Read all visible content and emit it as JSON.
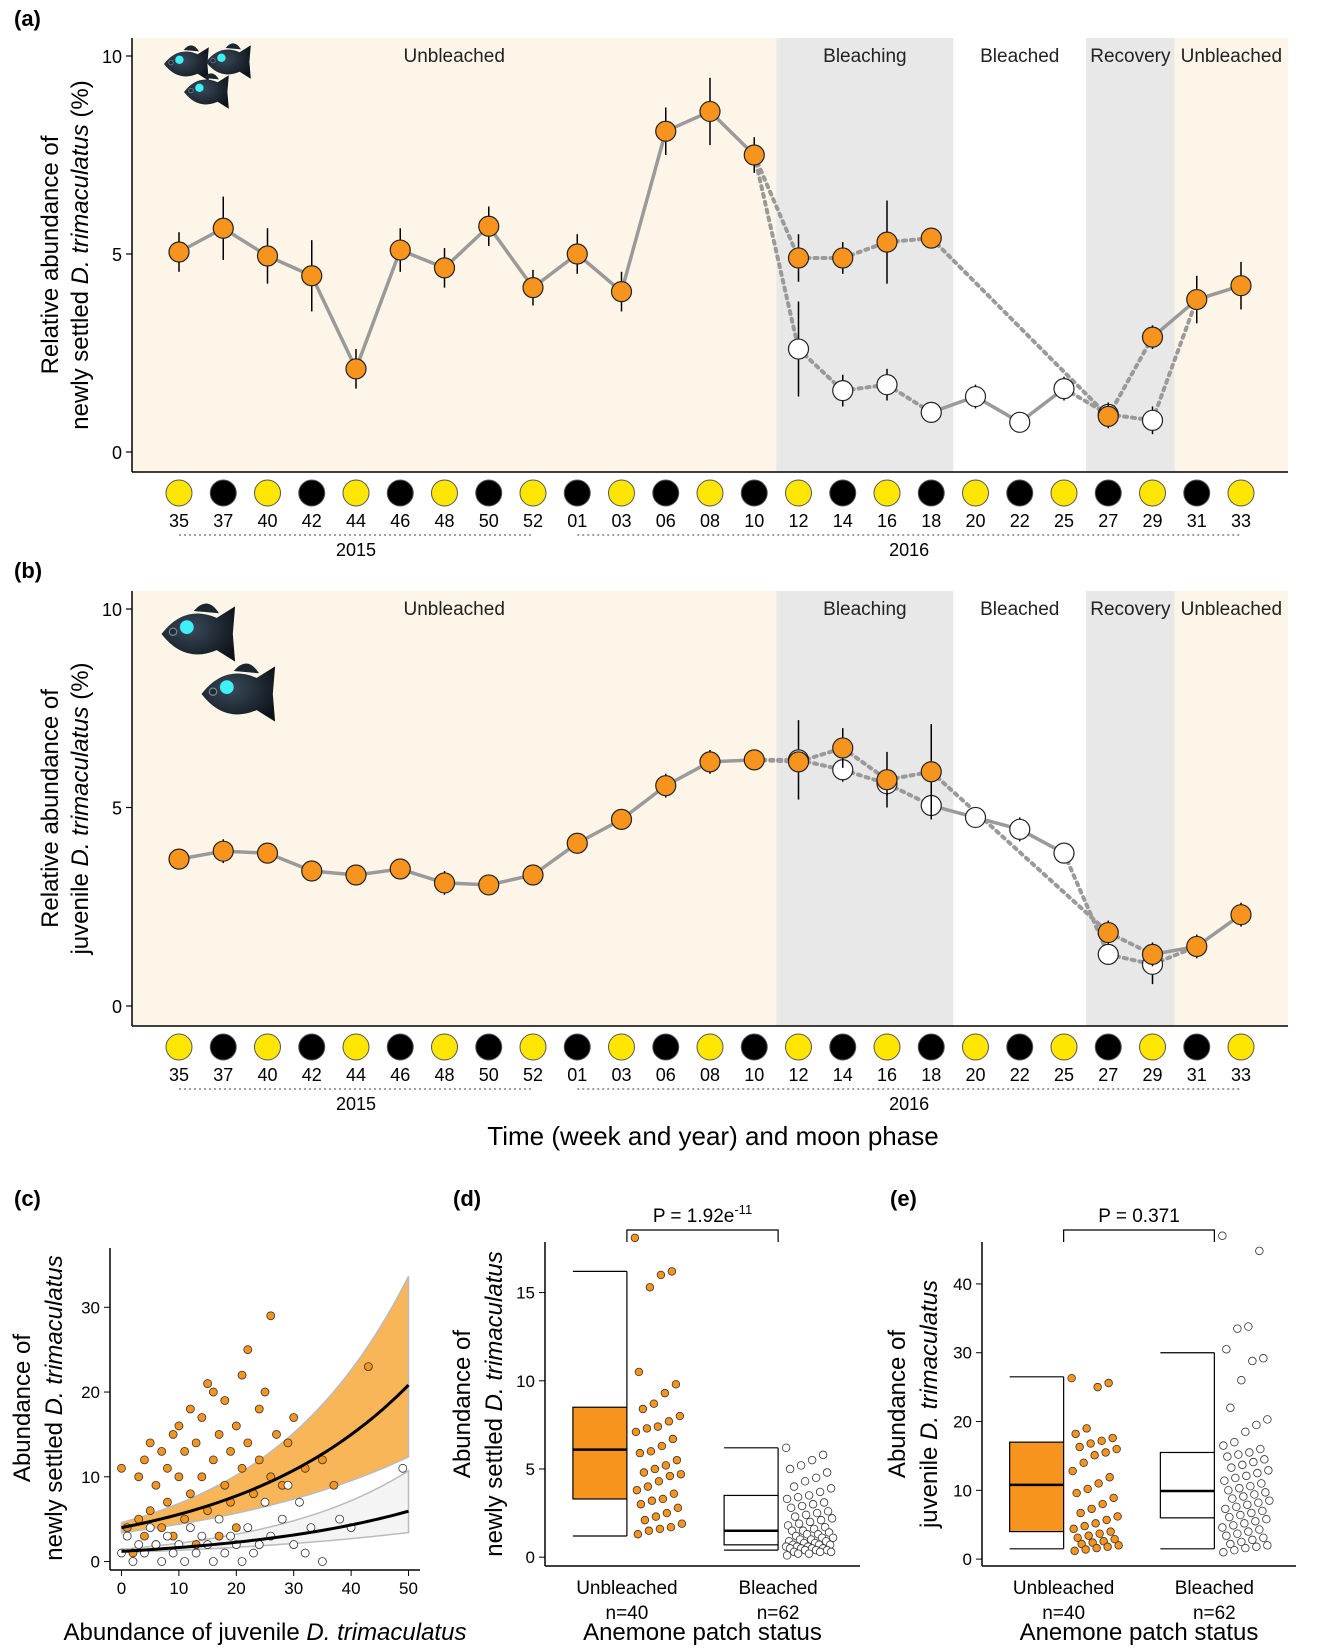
{
  "figure": {
    "shared_xlabel": "Time (week and year) and moon phase"
  },
  "phases": [
    {
      "label": "Unbleached",
      "from": 0,
      "to": 13,
      "fill": "#fdf5e8"
    },
    {
      "label": "Bleaching",
      "from": 13,
      "to": 17,
      "fill": "#e8e8e8"
    },
    {
      "label": "Bleached",
      "from": 17,
      "to": 20,
      "fill": "#ffffff"
    },
    {
      "label": "Recovery",
      "from": 20,
      "to": 22,
      "fill": "#e8e8e8"
    },
    {
      "label": "Unbleached",
      "from": 22,
      "to": 24,
      "fill": "#fdf5e8"
    }
  ],
  "timeline": {
    "weeks": [
      "35",
      "37",
      "40",
      "42",
      "44",
      "46",
      "48",
      "50",
      "52",
      "01",
      "03",
      "06",
      "08",
      "10",
      "12",
      "14",
      "16",
      "18",
      "20",
      "22",
      "25",
      "27",
      "29",
      "31",
      "33"
    ],
    "moon": [
      "full",
      "new",
      "full",
      "new",
      "full",
      "new",
      "full",
      "new",
      "full",
      "new",
      "full",
      "new",
      "full",
      "new",
      "full",
      "new",
      "full",
      "new",
      "full",
      "new",
      "full",
      "new",
      "full",
      "new",
      "full"
    ],
    "years": [
      {
        "label": "2015",
        "from": 0,
        "to": 8
      },
      {
        "label": "2016",
        "from": 9,
        "to": 24
      }
    ]
  },
  "colors": {
    "unbleached": "#f7941d",
    "bleached": "#ffffff",
    "moon_full": "#ffe600",
    "moon_new": "#000000",
    "line": "#999999",
    "ci_unbleached": "#f7a93b",
    "ci_bleached": "#f2f2f2"
  },
  "chart_data": [
    {
      "panel": "(a)",
      "type": "line",
      "ylabel_line1": "Relative abundance of",
      "ylabel_line2": "newly settled D. trimaculatus (%)",
      "ylim": [
        0,
        10
      ],
      "yticks": [
        0,
        5,
        10
      ],
      "series": [
        {
          "status": "unbleached",
          "x": [
            0,
            1,
            2,
            3,
            4,
            5,
            6,
            7,
            8,
            9,
            10,
            11,
            12,
            13,
            14,
            15,
            16,
            17,
            21,
            22,
            23,
            24
          ],
          "y": [
            5.05,
            5.65,
            4.95,
            4.45,
            2.1,
            5.1,
            4.65,
            5.7,
            4.15,
            5.0,
            4.05,
            8.1,
            8.6,
            7.5,
            4.9,
            4.9,
            5.3,
            5.4,
            0.9,
            2.9,
            3.85,
            4.2
          ],
          "err": [
            0.5,
            0.8,
            0.7,
            0.9,
            0.5,
            0.55,
            0.5,
            0.5,
            0.45,
            0.5,
            0.5,
            0.6,
            0.85,
            0.45,
            0.6,
            0.4,
            1.05,
            0.25,
            0.3,
            0.3,
            0.6,
            0.6
          ]
        },
        {
          "status": "bleached",
          "x": [
            14,
            15,
            16,
            17,
            18,
            19,
            20,
            21,
            22
          ],
          "y": [
            2.6,
            1.55,
            1.7,
            1.0,
            1.4,
            0.75,
            1.6,
            0.95,
            0.8
          ],
          "err": [
            1.2,
            0.4,
            0.4,
            0.2,
            0.3,
            0.15,
            0.3,
            0.3,
            0.35
          ]
        }
      ]
    },
    {
      "panel": "(b)",
      "type": "line",
      "ylabel_line1": "Relative abundance of",
      "ylabel_line2": "juvenile D. trimaculatus (%)",
      "ylim": [
        0,
        10
      ],
      "yticks": [
        0,
        5,
        10
      ],
      "series": [
        {
          "status": "unbleached",
          "x": [
            0,
            1,
            2,
            3,
            4,
            5,
            6,
            7,
            8,
            9,
            10,
            11,
            12,
            13,
            14,
            15,
            16,
            17,
            21,
            22,
            23,
            24
          ],
          "y": [
            3.7,
            3.9,
            3.85,
            3.4,
            3.3,
            3.45,
            3.1,
            3.05,
            3.3,
            4.1,
            4.7,
            5.55,
            6.15,
            6.2,
            6.15,
            6.5,
            5.7,
            5.9,
            1.85,
            1.3,
            1.5,
            2.3
          ],
          "err": [
            0.15,
            0.3,
            0.25,
            0.2,
            0.25,
            0.2,
            0.3,
            0.25,
            0.2,
            0.25,
            0.15,
            0.3,
            0.3,
            0.15,
            0.25,
            0.5,
            0.7,
            1.2,
            0.3,
            0.3,
            0.3,
            0.3
          ]
        },
        {
          "status": "bleached",
          "x": [
            14,
            15,
            16,
            17,
            18,
            19,
            20,
            21,
            22
          ],
          "y": [
            6.2,
            5.95,
            5.6,
            5.05,
            4.75,
            4.45,
            3.85,
            1.3,
            1.05
          ],
          "err": [
            1.0,
            0.3,
            0.3,
            0.35,
            0.2,
            0.3,
            0.2,
            0.25,
            0.5
          ]
        }
      ]
    },
    {
      "panel": "(c)",
      "type": "scatter",
      "xlabel_prefix": "Abundance of juvenile ",
      "xlabel_species": "D. trimaculatus",
      "ylabel_line1": "Abundance of",
      "ylabel_line2_prefix": "newly settled ",
      "ylabel_line2_species": "D. trimaculatus",
      "xlim": [
        -2,
        52
      ],
      "ylim": [
        -1,
        37
      ],
      "xticks": [
        0,
        10,
        20,
        30,
        40,
        50
      ],
      "yticks": [
        0,
        10,
        20,
        30
      ],
      "fits": [
        {
          "status": "unbleached",
          "a": 4.0,
          "b": 0.033,
          "lo_a": 3.4,
          "lo_b": 0.0258,
          "hi_a": 4.6,
          "hi_b": 0.0398
        },
        {
          "status": "bleached",
          "a": 1.2,
          "b": 0.032,
          "lo_a": 1.05,
          "lo_b": 0.0236,
          "hi_a": 1.45,
          "hi_b": 0.04
        }
      ],
      "points_unbleached": [
        [
          0,
          11
        ],
        [
          1,
          4
        ],
        [
          2,
          1
        ],
        [
          3,
          5
        ],
        [
          3,
          10
        ],
        [
          4,
          3
        ],
        [
          4,
          12
        ],
        [
          5,
          14
        ],
        [
          5,
          6
        ],
        [
          6,
          2
        ],
        [
          6,
          9
        ],
        [
          7,
          13
        ],
        [
          7,
          4
        ],
        [
          8,
          11
        ],
        [
          8,
          7
        ],
        [
          9,
          15
        ],
        [
          9,
          3
        ],
        [
          10,
          10
        ],
        [
          10,
          16
        ],
        [
          11,
          5
        ],
        [
          11,
          13
        ],
        [
          12,
          8
        ],
        [
          12,
          18
        ],
        [
          13,
          14
        ],
        [
          13,
          2
        ],
        [
          14,
          17
        ],
        [
          14,
          10
        ],
        [
          15,
          21
        ],
        [
          15,
          6
        ],
        [
          16,
          20
        ],
        [
          16,
          12
        ],
        [
          17,
          15
        ],
        [
          17,
          3
        ],
        [
          18,
          19
        ],
        [
          18,
          9
        ],
        [
          19,
          13
        ],
        [
          19,
          7
        ],
        [
          20,
          16
        ],
        [
          20,
          4
        ],
        [
          21,
          22
        ],
        [
          21,
          11
        ],
        [
          22,
          25
        ],
        [
          22,
          14
        ],
        [
          23,
          8
        ],
        [
          24,
          18
        ],
        [
          24,
          12
        ],
        [
          25,
          20
        ],
        [
          26,
          10
        ],
        [
          26,
          29
        ],
        [
          27,
          15
        ],
        [
          28,
          9
        ],
        [
          29,
          14
        ],
        [
          30,
          17
        ],
        [
          32,
          11
        ],
        [
          35,
          12
        ],
        [
          37,
          9
        ],
        [
          43,
          23
        ]
      ],
      "points_bleached": [
        [
          0,
          1
        ],
        [
          1,
          3
        ],
        [
          2,
          0
        ],
        [
          3,
          2
        ],
        [
          4,
          1
        ],
        [
          5,
          4
        ],
        [
          6,
          2
        ],
        [
          7,
          0
        ],
        [
          8,
          3
        ],
        [
          9,
          1
        ],
        [
          10,
          2
        ],
        [
          11,
          0
        ],
        [
          12,
          4
        ],
        [
          13,
          1
        ],
        [
          14,
          3
        ],
        [
          15,
          2
        ],
        [
          16,
          0
        ],
        [
          17,
          5
        ],
        [
          18,
          1
        ],
        [
          19,
          3
        ],
        [
          20,
          2
        ],
        [
          21,
          0
        ],
        [
          22,
          4
        ],
        [
          23,
          1
        ],
        [
          24,
          2
        ],
        [
          25,
          7
        ],
        [
          26,
          3
        ],
        [
          28,
          5
        ],
        [
          29,
          9
        ],
        [
          30,
          2
        ],
        [
          31,
          7
        ],
        [
          32,
          1
        ],
        [
          33,
          4
        ],
        [
          35,
          0
        ],
        [
          38,
          5
        ],
        [
          40,
          4
        ],
        [
          49,
          11
        ]
      ]
    },
    {
      "panel": "(d)",
      "type": "box",
      "ylabel_line1": "Abundance of",
      "ylabel_line2_prefix": "newly settled ",
      "ylabel_line2_species": "D. trimaculatus",
      "xlabel": "Anemone patch status",
      "ylim": [
        -0.5,
        19
      ],
      "yticks": [
        0,
        5,
        10,
        15
      ],
      "p_label": "P = 1.92e",
      "p_exp": "-11",
      "groups": [
        {
          "name": "Unbleached",
          "n": "n=40",
          "status": "unbleached",
          "stats": {
            "min": 1.2,
            "q1": 3.3,
            "median": 6.1,
            "q3": 8.5,
            "max": 16.2
          },
          "points": [
            18.1,
            16.2,
            16.0,
            15.3,
            10.5,
            9.8,
            9.3,
            8.7,
            8.4,
            8.0,
            7.7,
            7.4,
            7.3,
            7.1,
            6.7,
            6.3,
            6.0,
            5.9,
            5.5,
            5.2,
            5.0,
            4.8,
            4.7,
            4.6,
            4.3,
            4.0,
            3.8,
            3.6,
            3.3,
            3.2,
            3.0,
            2.8,
            2.5,
            2.3,
            2.1,
            1.9,
            1.7,
            1.6,
            1.5,
            1.3
          ]
        },
        {
          "name": "Bleached",
          "n": "n=62",
          "status": "bleached",
          "stats": {
            "min": 0.4,
            "q1": 0.7,
            "median": 1.5,
            "q3": 3.5,
            "max": 6.2
          },
          "points": [
            6.2,
            5.8,
            5.5,
            5.2,
            5.0,
            4.8,
            4.5,
            4.3,
            4.0,
            3.9,
            3.7,
            3.5,
            3.4,
            3.3,
            3.1,
            3.0,
            2.9,
            2.8,
            2.6,
            2.5,
            2.4,
            2.3,
            2.2,
            2.1,
            2.0,
            1.9,
            1.8,
            1.7,
            1.6,
            1.5,
            1.5,
            1.4,
            1.3,
            1.3,
            1.2,
            1.1,
            1.1,
            1.0,
            1.0,
            0.9,
            0.9,
            0.8,
            0.8,
            0.7,
            0.7,
            0.7,
            0.6,
            0.6,
            0.6,
            0.5,
            0.5,
            0.5,
            0.5,
            0.4,
            0.4,
            0.4,
            0.3,
            0.3,
            0.3,
            0.2,
            0.2,
            0.1
          ]
        }
      ]
    },
    {
      "panel": "(e)",
      "type": "box",
      "ylabel_line1": "Abundance of",
      "ylabel_line2_prefix": "juvenile ",
      "ylabel_line2_species": "D. trimaculatus",
      "xlabel": "Anemone patch status",
      "ylim": [
        -1,
        49
      ],
      "yticks": [
        0,
        10,
        20,
        30,
        40
      ],
      "p_label": "P = 0.371",
      "p_exp": "",
      "groups": [
        {
          "name": "Unbleached",
          "n": "n=40",
          "status": "unbleached",
          "stats": {
            "min": 1.5,
            "q1": 4.0,
            "median": 10.8,
            "q3": 17.0,
            "max": 26.5
          },
          "points": [
            26.3,
            25.6,
            25.0,
            19.0,
            18.2,
            17.6,
            17.2,
            16.8,
            16.3,
            16.0,
            15.5,
            15.1,
            14.0,
            12.8,
            11.9,
            11.0,
            10.2,
            9.6,
            8.9,
            8.0,
            7.3,
            6.7,
            6.2,
            5.7,
            5.2,
            4.8,
            4.4,
            4.0,
            3.7,
            3.4,
            3.1,
            2.9,
            2.6,
            2.4,
            2.2,
            2.0,
            1.8,
            1.6,
            1.4,
            1.2
          ]
        },
        {
          "name": "Bleached",
          "n": "n=62",
          "status": "bleached",
          "stats": {
            "min": 1.5,
            "q1": 6.0,
            "median": 9.9,
            "q3": 15.5,
            "max": 30.0
          },
          "points": [
            47.0,
            44.8,
            33.8,
            33.5,
            30.5,
            29.2,
            28.8,
            26.0,
            22.0,
            20.3,
            19.5,
            18.5,
            17.0,
            16.5,
            16.0,
            15.5,
            15.2,
            14.9,
            14.5,
            14.1,
            13.7,
            13.3,
            12.9,
            12.5,
            12.1,
            11.8,
            11.4,
            11.0,
            10.6,
            10.3,
            10.0,
            9.7,
            9.4,
            9.1,
            8.8,
            8.5,
            8.2,
            7.9,
            7.6,
            7.3,
            7.0,
            6.7,
            6.4,
            6.1,
            5.8,
            5.5,
            5.2,
            4.9,
            4.6,
            4.3,
            4.0,
            3.7,
            3.4,
            3.1,
            2.8,
            2.5,
            2.2,
            2.0,
            1.8,
            1.6,
            1.3,
            1.0
          ]
        }
      ]
    }
  ]
}
